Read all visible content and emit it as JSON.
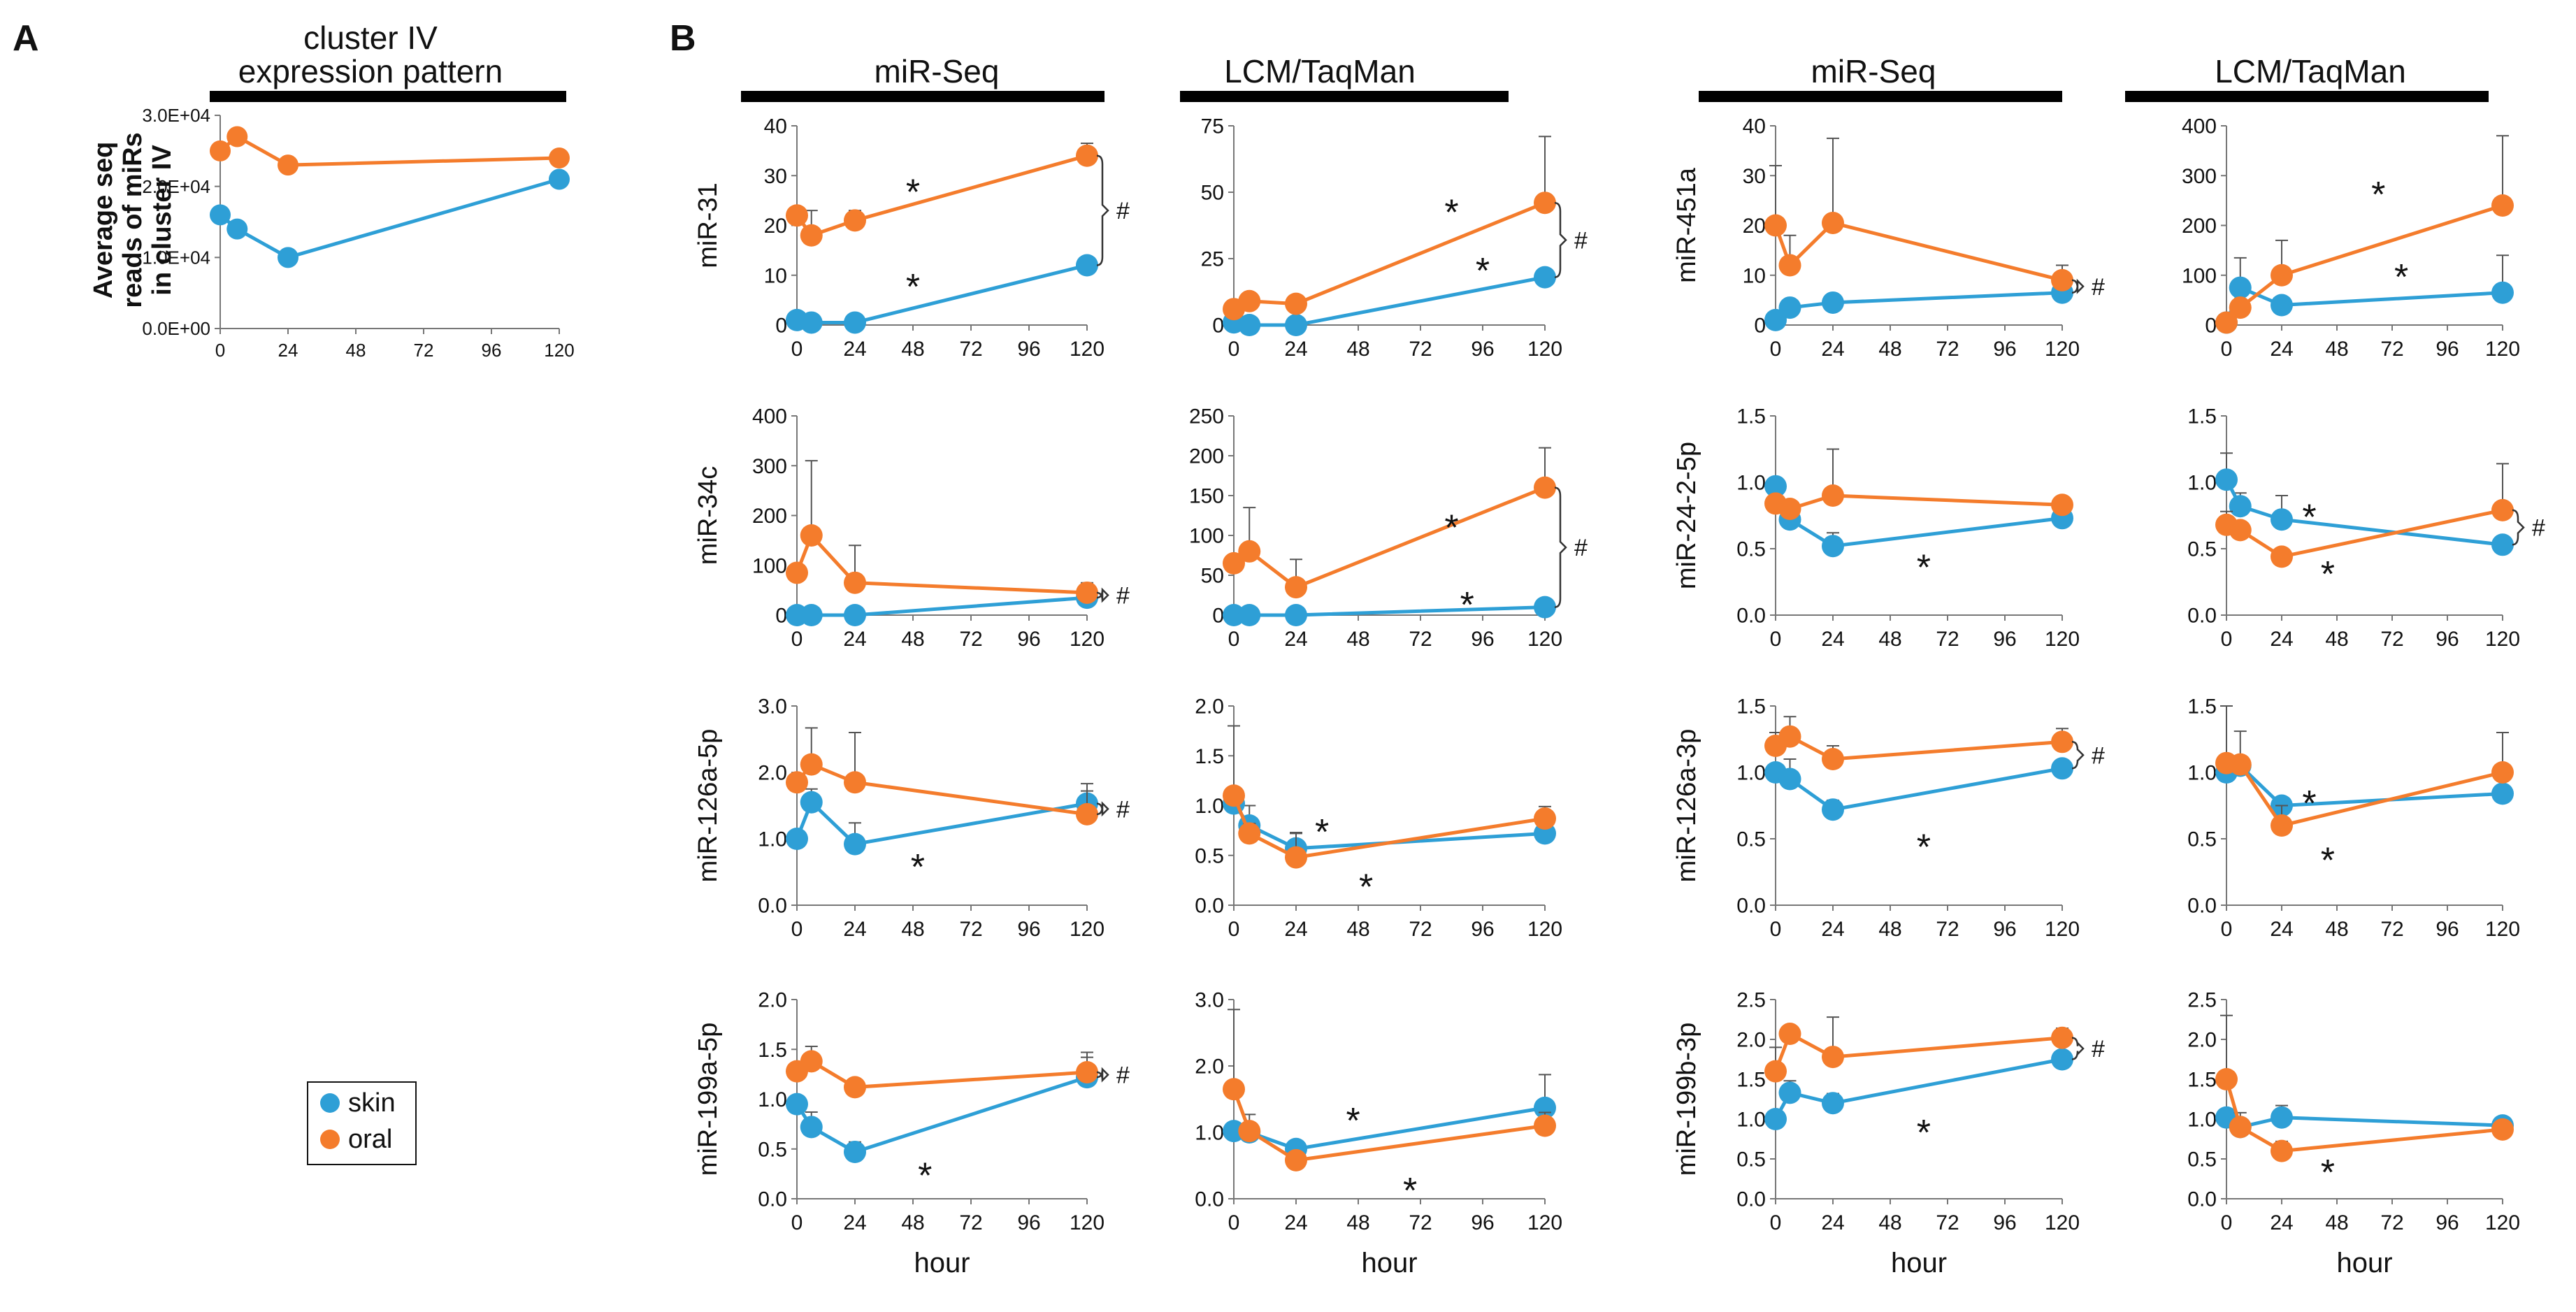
{
  "panel_labels": {
    "a": "A",
    "b": "B"
  },
  "legend": {
    "skin": "skin",
    "oral": "oral"
  },
  "series_colors": {
    "skin": "#2E9FD6",
    "oral": "#F47C2C"
  },
  "panel_a": {
    "title_line1": "cluster IV",
    "title_line2": "expression pattern",
    "ylabel_line1": "Average seq",
    "ylabel_line2": "reads of miRs",
    "ylabel_line3": "in cluster IV"
  },
  "column_headers": [
    "miR-Seq",
    "LCM/TaqMan",
    "miR-Seq",
    "LCM/TaqMan"
  ],
  "x_axis_label": "hour",
  "chart_data": [
    {
      "id": "clusterIV",
      "type": "line",
      "title": "cluster IV expression pattern",
      "ylabel": "Average seq reads of miRs in cluster IV",
      "xlabel": "",
      "x_ticks": [
        "0",
        "24",
        "48",
        "72",
        "96",
        "120"
      ],
      "x": [
        0,
        6,
        24,
        120
      ],
      "ylim": [
        0,
        30000
      ],
      "y_ticks": [
        "0.0E+00",
        "1.0E+04",
        "2.0E+04",
        "3.0E+04"
      ],
      "series": [
        {
          "name": "skin",
          "values": [
            16000,
            14000,
            10000,
            21000
          ],
          "err": [
            0,
            0,
            0,
            0
          ]
        },
        {
          "name": "oral",
          "values": [
            25000,
            27000,
            23000,
            24000
          ],
          "err": [
            0,
            0,
            0,
            0
          ]
        }
      ],
      "sig_markers": [],
      "hash": ""
    },
    {
      "id": "miR-31_seq",
      "type": "line",
      "title": "miR-Seq",
      "ylabel": "miR-31",
      "xlabel": "",
      "x_ticks": [
        "0",
        "24",
        "48",
        "72",
        "96",
        "120"
      ],
      "x": [
        0,
        6,
        24,
        120
      ],
      "ylim": [
        0,
        40
      ],
      "y_ticks": [
        "0",
        "10",
        "20",
        "30",
        "40"
      ],
      "series": [
        {
          "name": "skin",
          "values": [
            1,
            0.5,
            0.5,
            12
          ],
          "err": [
            0,
            0,
            0,
            1
          ]
        },
        {
          "name": "oral",
          "values": [
            22,
            18,
            21,
            34
          ],
          "err": [
            0,
            5,
            2,
            2.5
          ]
        }
      ],
      "sig_markers": [
        {
          "text": "*",
          "x": 48,
          "y": 27
        },
        {
          "text": "*",
          "x": 48,
          "y": 8
        }
      ],
      "hash": "#"
    },
    {
      "id": "miR-31_lcm",
      "type": "line",
      "title": "LCM/TaqMan",
      "ylabel": "",
      "xlabel": "",
      "x_ticks": [
        "0",
        "24",
        "48",
        "72",
        "96",
        "120"
      ],
      "x": [
        0,
        6,
        24,
        120
      ],
      "ylim": [
        0,
        75
      ],
      "y_ticks": [
        "0",
        "25",
        "50",
        "75"
      ],
      "series": [
        {
          "name": "skin",
          "values": [
            1,
            0,
            0,
            18
          ],
          "err": [
            0,
            0,
            0,
            3
          ]
        },
        {
          "name": "oral",
          "values": [
            6,
            9,
            8,
            46
          ],
          "err": [
            0,
            0,
            0,
            25
          ]
        }
      ],
      "sig_markers": [
        {
          "text": "*",
          "x": 84,
          "y": 43
        },
        {
          "text": "*",
          "x": 96,
          "y": 21
        }
      ],
      "hash": "#"
    },
    {
      "id": "miR-451a_seq",
      "type": "line",
      "title": "miR-Seq",
      "ylabel": "miR-451a",
      "xlabel": "",
      "x_ticks": [
        "0",
        "24",
        "48",
        "72",
        "96",
        "120"
      ],
      "x": [
        0,
        6,
        24,
        120
      ],
      "ylim": [
        0,
        40
      ],
      "y_ticks": [
        "0",
        "10",
        "20",
        "30",
        "40"
      ],
      "series": [
        {
          "name": "skin",
          "values": [
            1,
            3.5,
            4.5,
            6.5
          ],
          "err": [
            0,
            0,
            0,
            0.5
          ]
        },
        {
          "name": "oral",
          "values": [
            20,
            12,
            20.5,
            9
          ],
          "err": [
            12,
            6,
            17,
            3
          ]
        }
      ],
      "sig_markers": [],
      "hash": "#"
    },
    {
      "id": "miR-451a_lcm",
      "type": "line",
      "title": "LCM/TaqMan",
      "ylabel": "",
      "xlabel": "",
      "x_ticks": [
        "0",
        "24",
        "48",
        "72",
        "96",
        "120"
      ],
      "x": [
        0,
        6,
        24,
        120
      ],
      "ylim": [
        0,
        400
      ],
      "y_ticks": [
        "0",
        "100",
        "200",
        "300",
        "400"
      ],
      "series": [
        {
          "name": "skin",
          "values": [
            5,
            75,
            40,
            65
          ],
          "err": [
            0,
            60,
            0,
            75
          ]
        },
        {
          "name": "oral",
          "values": [
            5,
            35,
            100,
            240
          ],
          "err": [
            0,
            0,
            70,
            140
          ]
        }
      ],
      "sig_markers": [
        {
          "text": "*",
          "x": 66,
          "y": 265
        },
        {
          "text": "*",
          "x": 76,
          "y": 100
        }
      ],
      "hash": ""
    },
    {
      "id": "miR-34c_seq",
      "type": "line",
      "title": "",
      "ylabel": "miR-34c",
      "xlabel": "",
      "x_ticks": [
        "0",
        "24",
        "48",
        "72",
        "96",
        "120"
      ],
      "x": [
        0,
        6,
        24,
        120
      ],
      "ylim": [
        0,
        400
      ],
      "y_ticks": [
        "0",
        "100",
        "200",
        "300",
        "400"
      ],
      "series": [
        {
          "name": "skin",
          "values": [
            0,
            0,
            0,
            35
          ],
          "err": [
            0,
            0,
            0,
            0
          ]
        },
        {
          "name": "oral",
          "values": [
            85,
            160,
            65,
            45
          ],
          "err": [
            0,
            150,
            75,
            20
          ]
        }
      ],
      "sig_markers": [],
      "hash": "#"
    },
    {
      "id": "miR-34c_lcm",
      "type": "line",
      "title": "",
      "ylabel": "",
      "xlabel": "",
      "x_ticks": [
        "0",
        "24",
        "48",
        "72",
        "96",
        "120"
      ],
      "x": [
        0,
        6,
        24,
        120
      ],
      "ylim": [
        0,
        250
      ],
      "y_ticks": [
        "0",
        "50",
        "100",
        "150",
        "200",
        "250"
      ],
      "series": [
        {
          "name": "skin",
          "values": [
            0,
            0,
            0,
            10
          ],
          "err": [
            0,
            0,
            0,
            0
          ]
        },
        {
          "name": "oral",
          "values": [
            65,
            80,
            35,
            160
          ],
          "err": [
            0,
            55,
            35,
            50
          ]
        }
      ],
      "sig_markers": [
        {
          "text": "*",
          "x": 84,
          "y": 112
        },
        {
          "text": "*",
          "x": 90,
          "y": 15
        }
      ],
      "hash": "#"
    },
    {
      "id": "miR-24-2-5p_seq",
      "type": "line",
      "title": "",
      "ylabel": "miR-24-2-5p",
      "xlabel": "",
      "x_ticks": [
        "0",
        "24",
        "48",
        "72",
        "96",
        "120"
      ],
      "x": [
        0,
        6,
        24,
        120
      ],
      "ylim": [
        0,
        1.5
      ],
      "y_ticks": [
        "0.0",
        "0.5",
        "1.0",
        "1.5"
      ],
      "series": [
        {
          "name": "skin",
          "values": [
            0.97,
            0.72,
            0.52,
            0.73
          ],
          "err": [
            0,
            0,
            0.1,
            0.03
          ]
        },
        {
          "name": "oral",
          "values": [
            0.84,
            0.8,
            0.9,
            0.83
          ],
          "err": [
            0,
            0,
            0.35,
            0.04
          ]
        }
      ],
      "sig_markers": [
        {
          "text": "*",
          "x": 62,
          "y": 0.37
        }
      ],
      "hash": ""
    },
    {
      "id": "miR-24-2-5p_lcm",
      "type": "line",
      "title": "",
      "ylabel": "",
      "xlabel": "",
      "x_ticks": [
        "0",
        "24",
        "48",
        "72",
        "96",
        "120"
      ],
      "x": [
        0,
        6,
        24,
        120
      ],
      "ylim": [
        0,
        1.5
      ],
      "y_ticks": [
        "0.0",
        "0.5",
        "1.0",
        "1.5"
      ],
      "series": [
        {
          "name": "skin",
          "values": [
            1.02,
            0.82,
            0.72,
            0.53
          ],
          "err": [
            0.2,
            0.1,
            0.18,
            0.05
          ]
        },
        {
          "name": "oral",
          "values": [
            0.68,
            0.64,
            0.44,
            0.79
          ],
          "err": [
            0.1,
            0.05,
            0.05,
            0.35
          ]
        }
      ],
      "sig_markers": [
        {
          "text": "*",
          "x": 36,
          "y": 0.75
        },
        {
          "text": "*",
          "x": 44,
          "y": 0.32
        }
      ],
      "hash": "#"
    },
    {
      "id": "miR-126a-5p_seq",
      "type": "line",
      "title": "",
      "ylabel": "miR-126a-5p",
      "xlabel": "",
      "x_ticks": [
        "0",
        "24",
        "48",
        "72",
        "96",
        "120"
      ],
      "x": [
        0,
        6,
        24,
        120
      ],
      "ylim": [
        0,
        3.0
      ],
      "y_ticks": [
        "0.0",
        "1.0",
        "2.0",
        "3.0"
      ],
      "series": [
        {
          "name": "skin",
          "values": [
            1.0,
            1.55,
            0.92,
            1.53
          ],
          "err": [
            0,
            0.2,
            0.32,
            0.3
          ]
        },
        {
          "name": "oral",
          "values": [
            1.85,
            2.12,
            1.85,
            1.37
          ],
          "err": [
            0,
            0.55,
            0.75,
            0.35
          ]
        }
      ],
      "sig_markers": [
        {
          "text": "*",
          "x": 50,
          "y": 0.6
        }
      ],
      "hash": "#"
    },
    {
      "id": "miR-126a-5p_lcm",
      "type": "line",
      "title": "",
      "ylabel": "",
      "xlabel": "",
      "x_ticks": [
        "0",
        "24",
        "48",
        "72",
        "96",
        "120"
      ],
      "x": [
        0,
        6,
        24,
        120
      ],
      "ylim": [
        0,
        2.0
      ],
      "y_ticks": [
        "0.0",
        "0.5",
        "1.0",
        "1.5",
        "2.0"
      ],
      "series": [
        {
          "name": "skin",
          "values": [
            1.02,
            0.8,
            0.57,
            0.72
          ],
          "err": [
            0,
            0.2,
            0.15,
            0.1
          ]
        },
        {
          "name": "oral",
          "values": [
            1.1,
            0.72,
            0.48,
            0.87
          ],
          "err": [
            0.7,
            0.1,
            0.25,
            0.12
          ]
        }
      ],
      "sig_markers": [
        {
          "text": "*",
          "x": 34,
          "y": 0.75
        },
        {
          "text": "*",
          "x": 51,
          "y": 0.2
        }
      ],
      "hash": ""
    },
    {
      "id": "miR-126a-3p_seq",
      "type": "line",
      "title": "",
      "ylabel": "miR-126a-3p",
      "xlabel": "",
      "x_ticks": [
        "0",
        "24",
        "48",
        "72",
        "96",
        "120"
      ],
      "x": [
        0,
        6,
        24,
        120
      ],
      "ylim": [
        0,
        1.5
      ],
      "y_ticks": [
        "0.0",
        "0.5",
        "1.0",
        "1.5"
      ],
      "series": [
        {
          "name": "skin",
          "values": [
            1.0,
            0.95,
            0.72,
            1.03
          ],
          "err": [
            0,
            0.15,
            0.07,
            0.03
          ]
        },
        {
          "name": "oral",
          "values": [
            1.2,
            1.27,
            1.1,
            1.23
          ],
          "err": [
            0.1,
            0.15,
            0.1,
            0.1
          ]
        }
      ],
      "sig_markers": [
        {
          "text": "*",
          "x": 62,
          "y": 0.45
        }
      ],
      "hash": "#"
    },
    {
      "id": "miR-126a-3p_lcm",
      "type": "line",
      "title": "",
      "ylabel": "",
      "xlabel": "",
      "x_ticks": [
        "0",
        "24",
        "48",
        "72",
        "96",
        "120"
      ],
      "x": [
        0,
        6,
        24,
        120
      ],
      "ylim": [
        0,
        1.5
      ],
      "y_ticks": [
        "0.0",
        "0.5",
        "1.0",
        "1.5"
      ],
      "series": [
        {
          "name": "skin",
          "values": [
            1.0,
            1.05,
            0.75,
            0.84
          ],
          "err": [
            0,
            0,
            0,
            0.15
          ]
        },
        {
          "name": "oral",
          "values": [
            1.07,
            1.06,
            0.6,
            1.0
          ],
          "err": [
            0.5,
            0.25,
            0.15,
            0.3
          ]
        }
      ],
      "sig_markers": [
        {
          "text": "*",
          "x": 36,
          "y": 0.78
        },
        {
          "text": "*",
          "x": 44,
          "y": 0.35
        }
      ],
      "hash": ""
    },
    {
      "id": "miR-199a-5p_seq",
      "type": "line",
      "title": "",
      "ylabel": "miR-199a-5p",
      "xlabel": "hour",
      "x_ticks": [
        "0",
        "24",
        "48",
        "72",
        "96",
        "120"
      ],
      "x": [
        0,
        6,
        24,
        120
      ],
      "ylim": [
        0,
        2.0
      ],
      "y_ticks": [
        "0.0",
        "0.5",
        "1.0",
        "1.5",
        "2.0"
      ],
      "series": [
        {
          "name": "skin",
          "values": [
            0.95,
            0.72,
            0.47,
            1.22
          ],
          "err": [
            0,
            0.15,
            0.1,
            0.2
          ]
        },
        {
          "name": "oral",
          "values": [
            1.28,
            1.38,
            1.12,
            1.27
          ],
          "err": [
            0,
            0.15,
            0.08,
            0.2
          ]
        }
      ],
      "sig_markers": [
        {
          "text": "*",
          "x": 53,
          "y": 0.25
        }
      ],
      "hash": "#"
    },
    {
      "id": "miR-199a-5p_lcm",
      "type": "line",
      "title": "",
      "ylabel": "",
      "xlabel": "hour",
      "x_ticks": [
        "0",
        "24",
        "48",
        "72",
        "96",
        "120"
      ],
      "x": [
        0,
        6,
        24,
        120
      ],
      "ylim": [
        0,
        3.0
      ],
      "y_ticks": [
        "0.0",
        "1.0",
        "2.0",
        "3.0"
      ],
      "series": [
        {
          "name": "skin",
          "values": [
            1.02,
            1.0,
            0.75,
            1.37
          ],
          "err": [
            0,
            0,
            0,
            0.5
          ]
        },
        {
          "name": "oral",
          "values": [
            1.65,
            1.02,
            0.58,
            1.1
          ],
          "err": [
            1.2,
            0.25,
            0,
            0.2
          ]
        }
      ],
      "sig_markers": [
        {
          "text": "*",
          "x": 46,
          "y": 1.2
        },
        {
          "text": "*",
          "x": 68,
          "y": 0.15
        }
      ],
      "hash": ""
    },
    {
      "id": "miR-199b-3p_seq",
      "type": "line",
      "title": "",
      "ylabel": "miR-199b-3p",
      "xlabel": "hour",
      "x_ticks": [
        "0",
        "24",
        "48",
        "72",
        "96",
        "120"
      ],
      "x": [
        0,
        6,
        24,
        120
      ],
      "ylim": [
        0,
        2.5
      ],
      "y_ticks": [
        "0.0",
        "0.5",
        "1.0",
        "1.5",
        "2.0",
        "2.5"
      ],
      "series": [
        {
          "name": "skin",
          "values": [
            1.0,
            1.33,
            1.2,
            1.75
          ],
          "err": [
            0,
            0.15,
            0.12,
            0.08
          ]
        },
        {
          "name": "oral",
          "values": [
            1.6,
            2.07,
            1.78,
            2.02
          ],
          "err": [
            0.3,
            0,
            0.5,
            0.12
          ]
        }
      ],
      "sig_markers": [
        {
          "text": "*",
          "x": 62,
          "y": 0.85
        }
      ],
      "hash": "#"
    },
    {
      "id": "miR-199b-3p_lcm",
      "type": "line",
      "title": "",
      "ylabel": "",
      "xlabel": "hour",
      "x_ticks": [
        "0",
        "24",
        "48",
        "72",
        "96",
        "120"
      ],
      "x": [
        0,
        6,
        24,
        120
      ],
      "ylim": [
        0,
        2.5
      ],
      "y_ticks": [
        "0.0",
        "0.5",
        "1.0",
        "1.5",
        "2.0",
        "2.5"
      ],
      "series": [
        {
          "name": "skin",
          "values": [
            1.02,
            0.9,
            1.02,
            0.92
          ],
          "err": [
            0,
            0,
            0.15,
            0.05
          ]
        },
        {
          "name": "oral",
          "values": [
            1.5,
            0.9,
            0.6,
            0.87
          ],
          "err": [
            0.8,
            0.18,
            0.12,
            0.05
          ]
        }
      ],
      "sig_markers": [
        {
          "text": "*",
          "x": 44,
          "y": 0.35
        }
      ],
      "hash": ""
    }
  ]
}
